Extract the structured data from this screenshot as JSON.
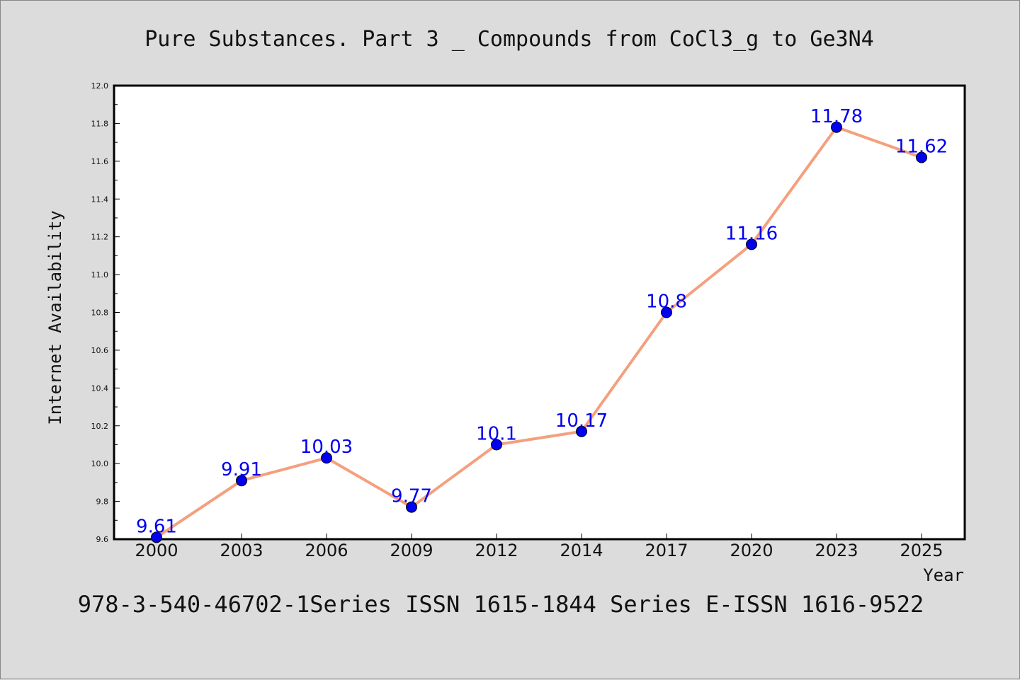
{
  "chart_data": {
    "type": "line",
    "title": "Pure Substances. Part 3 _ Compounds from CoCl3_g to Ge3N4",
    "xlabel": "Year",
    "ylabel": "Internet Availability",
    "categories": [
      "2000",
      "2003",
      "2006",
      "2009",
      "2012",
      "2014",
      "2017",
      "2020",
      "2023",
      "2025"
    ],
    "series": [
      {
        "values": [
          9.61,
          9.91,
          10.03,
          9.77,
          10.1,
          10.17,
          10.8,
          11.16,
          11.78,
          11.62
        ],
        "labels": [
          "9.61",
          "9.91",
          "10.03",
          "9.77",
          "10.1",
          "10.17",
          "10.8",
          "11.16",
          "11.78",
          "11.62"
        ]
      }
    ],
    "ylim": [
      9.6,
      12.0
    ],
    "yticks": [
      "9.6",
      "9.8",
      "10.0",
      "10.2",
      "10.4",
      "10.6",
      "10.8",
      "11.0",
      "11.2",
      "11.4",
      "11.6",
      "11.8",
      "12.0"
    ],
    "footer": "978-3-540-46702-1Series ISSN 1615-1844 Series E-ISSN 1616-9522",
    "grid": false,
    "colors": {
      "line": "#f4a07e",
      "marker": "#0000ee",
      "label": "#0000ee",
      "background": "#dcdcdc",
      "plot_background": "#ffffff"
    }
  }
}
